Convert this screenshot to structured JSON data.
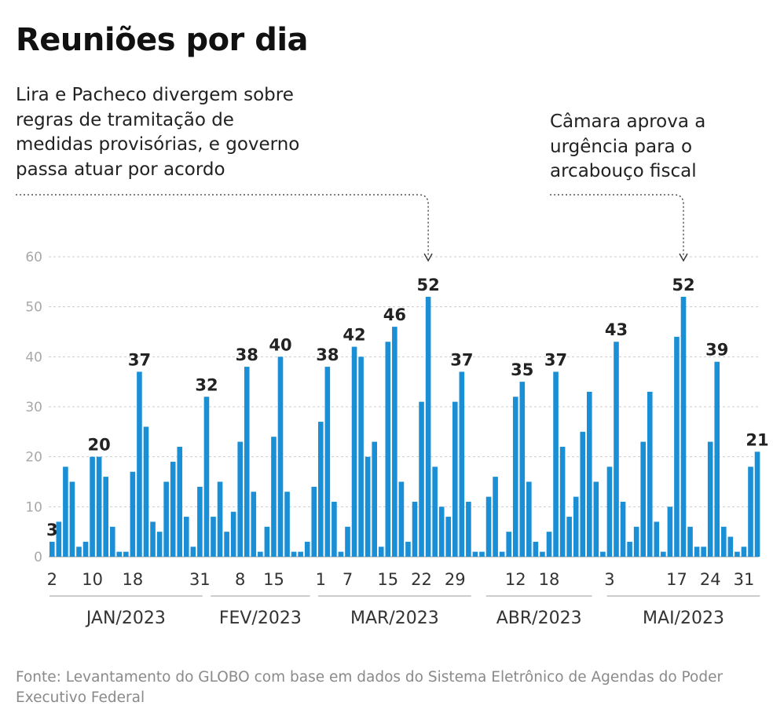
{
  "title": "Reuniões por dia",
  "annotations": [
    {
      "text": "Lira e Pacheco divergem sobre\nregras de tramitação de\nmedidas provisórias, e governo\npassa atuar por acordo"
    },
    {
      "text": "Câmara aprova a\nurgência para o\narcabouço fiscal"
    }
  ],
  "source": "Fonte: Levantamento do GLOBO com base em dados do Sistema Eletrônico de Agendas do Poder Executivo Federal",
  "colors": {
    "bar": "#1a8fd6",
    "grid": "#cccccc",
    "axis": "#999999"
  },
  "chart_data": {
    "type": "bar",
    "title": "Reuniões por dia",
    "xlabel": "",
    "ylabel": "",
    "ylim": [
      0,
      60
    ],
    "yticks": [
      0,
      10,
      20,
      30,
      40,
      50,
      60
    ],
    "grid": true,
    "values": [
      3,
      7,
      18,
      15,
      2,
      3,
      20,
      20,
      16,
      6,
      1,
      1,
      17,
      37,
      26,
      7,
      5,
      15,
      19,
      22,
      8,
      2,
      14,
      32,
      8,
      15,
      5,
      9,
      23,
      38,
      13,
      1,
      6,
      24,
      40,
      13,
      1,
      1,
      3,
      14,
      27,
      38,
      11,
      1,
      6,
      42,
      40,
      20,
      23,
      2,
      43,
      46,
      15,
      3,
      11,
      31,
      52,
      18,
      10,
      8,
      31,
      37,
      11,
      1,
      1,
      12,
      16,
      1,
      5,
      32,
      35,
      15,
      3,
      1,
      5,
      37,
      22,
      8,
      12,
      25,
      33,
      15,
      1,
      18,
      43,
      11,
      3,
      6,
      23,
      33,
      7,
      1,
      10,
      44,
      52,
      6,
      2,
      2,
      23,
      39,
      6,
      4,
      1,
      2,
      18,
      21
    ],
    "data_labels": [
      {
        "index": 0,
        "text": "3"
      },
      {
        "index": 7,
        "text": "20"
      },
      {
        "index": 13,
        "text": "37"
      },
      {
        "index": 23,
        "text": "32"
      },
      {
        "index": 29,
        "text": "38"
      },
      {
        "index": 34,
        "text": "40"
      },
      {
        "index": 41,
        "text": "38"
      },
      {
        "index": 45,
        "text": "42"
      },
      {
        "index": 51,
        "text": "46"
      },
      {
        "index": 56,
        "text": "52"
      },
      {
        "index": 61,
        "text": "37"
      },
      {
        "index": 70,
        "text": "35"
      },
      {
        "index": 75,
        "text": "37"
      },
      {
        "index": 84,
        "text": "43"
      },
      {
        "index": 94,
        "text": "52"
      },
      {
        "index": 99,
        "text": "39"
      },
      {
        "index": 105,
        "text": "21"
      }
    ],
    "x_tick_labels": [
      {
        "index": 0,
        "text": "2"
      },
      {
        "index": 6,
        "text": "10"
      },
      {
        "index": 12,
        "text": "18"
      },
      {
        "index": 22,
        "text": "31"
      },
      {
        "index": 28,
        "text": "8"
      },
      {
        "index": 33,
        "text": "15"
      },
      {
        "index": 40,
        "text": "1"
      },
      {
        "index": 44,
        "text": "7"
      },
      {
        "index": 50,
        "text": "15"
      },
      {
        "index": 55,
        "text": "22"
      },
      {
        "index": 60,
        "text": "29"
      },
      {
        "index": 69,
        "text": "12"
      },
      {
        "index": 74,
        "text": "18"
      },
      {
        "index": 83,
        "text": "3"
      },
      {
        "index": 93,
        "text": "17"
      },
      {
        "index": 98,
        "text": "24"
      },
      {
        "index": 103,
        "text": "31"
      }
    ],
    "months": [
      {
        "label": "JAN/2023",
        "start": 0,
        "end": 22
      },
      {
        "label": "FEV/2023",
        "start": 24,
        "end": 38
      },
      {
        "label": "MAR/2023",
        "start": 40,
        "end": 62
      },
      {
        "label": "ABR/2023",
        "start": 65,
        "end": 80
      },
      {
        "label": "MAI/2023",
        "start": 83,
        "end": 105
      }
    ],
    "callouts": [
      {
        "annotation": 0,
        "index": 56
      },
      {
        "annotation": 1,
        "index": 94
      }
    ]
  }
}
